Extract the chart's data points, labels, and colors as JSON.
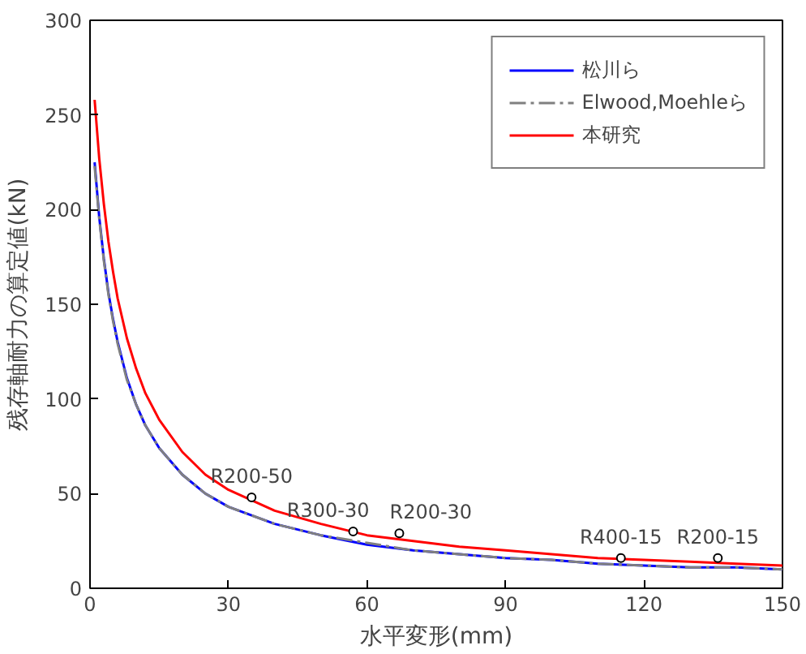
{
  "chart_data": {
    "type": "line",
    "xlabel": "水平変形(mm)",
    "ylabel": "残存軸耐力の算定値(kN)",
    "xlim": [
      0,
      150
    ],
    "ylim": [
      0,
      300
    ],
    "xticks": [
      0,
      30,
      60,
      90,
      120,
      150
    ],
    "yticks": [
      0,
      50,
      100,
      150,
      200,
      250,
      300
    ],
    "grid": false,
    "legend": "top right",
    "series": [
      {
        "name": "松川ら",
        "color": "#0000ff",
        "line_style": "solid",
        "x": [
          1,
          2,
          3,
          4,
          5,
          6,
          8,
          10,
          12,
          15,
          20,
          25,
          30,
          40,
          50,
          60,
          70,
          80,
          90,
          100,
          110,
          120,
          130,
          140,
          150
        ],
        "values": [
          225,
          196,
          174,
          156,
          142,
          130,
          111,
          97,
          86,
          74,
          60,
          50,
          43,
          34,
          28,
          23,
          20,
          18,
          16,
          15,
          13,
          12,
          11,
          11,
          10
        ]
      },
      {
        "name": "Elwood,Moehleら",
        "color": "#808080",
        "line_style": "dashed",
        "x": [
          1,
          2,
          3,
          4,
          5,
          6,
          8,
          10,
          12,
          15,
          20,
          25,
          30,
          40,
          50,
          60,
          70,
          80,
          90,
          100,
          110,
          120,
          130,
          140,
          150
        ],
        "values": [
          223,
          195,
          173,
          155,
          141,
          129,
          110,
          97,
          86,
          74,
          60,
          50,
          43,
          34,
          28,
          24,
          20,
          18,
          16,
          15,
          13,
          12,
          11,
          11,
          10
        ]
      },
      {
        "name": "本研究",
        "color": "#ff0000",
        "line_style": "solid",
        "x": [
          1,
          2,
          3,
          4,
          5,
          6,
          8,
          10,
          12,
          15,
          20,
          25,
          30,
          40,
          50,
          60,
          70,
          80,
          90,
          100,
          110,
          120,
          130,
          140,
          150
        ],
        "values": [
          258,
          227,
          203,
          183,
          167,
          153,
          132,
          116,
          103,
          89,
          72,
          60,
          52,
          41,
          34,
          28,
          25,
          22,
          20,
          18,
          16,
          15,
          14,
          13,
          12
        ]
      },
      {
        "type": "scatter",
        "color": "#000000",
        "marker": "circle",
        "x": [
          35,
          57,
          67,
          115,
          136
        ],
        "values": [
          48,
          30,
          29,
          16,
          16
        ]
      }
    ],
    "annotations": [
      {
        "text": "R200-50",
        "x": 35,
        "y": 48
      },
      {
        "text": "R300-30",
        "x": 57,
        "y": 30
      },
      {
        "text": "R200-30",
        "x": 67,
        "y": 29
      },
      {
        "text": "R400-15",
        "x": 115,
        "y": 16
      },
      {
        "text": "R200-15",
        "x": 136,
        "y": 16
      }
    ]
  }
}
